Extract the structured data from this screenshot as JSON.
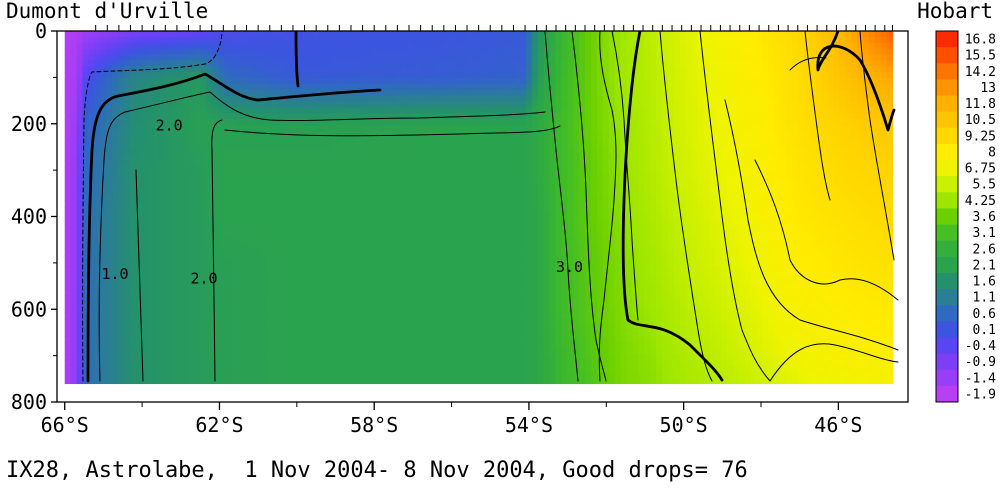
{
  "left_station": "Dumont d'Urville",
  "right_station": "Hobart",
  "caption": "IX28, Astrolabe,  1 Nov 2004- 8 Nov 2004, Good drops= 76",
  "chart_data": {
    "type": "heatmap",
    "variable": "temperature section",
    "x_axis": {
      "ticks": [
        "66°S",
        "62°S",
        "58°S",
        "54°S",
        "50°S",
        "46°S"
      ],
      "range_lat_south": [
        66.2,
        44.2
      ],
      "data_extent_lat_south": [
        66.0,
        44.6
      ]
    },
    "y_axis": {
      "ticks": [
        "0",
        "200",
        "400",
        "600",
        "800"
      ],
      "range_depth_m": [
        0,
        800
      ],
      "reversed": true,
      "data_max_depth_m": 760
    },
    "colorbar": {
      "levels": [
        "16.8",
        "15.5",
        "14.2",
        "13",
        "11.8",
        "10.5",
        "9.25",
        "8",
        "6.75",
        "5.5",
        "4.25",
        "3.6",
        "3.1",
        "2.6",
        "2.1",
        "1.6",
        "1.1",
        "0.6",
        "0.1",
        "-0.4",
        "-0.9",
        "-1.4",
        "-1.9"
      ],
      "colors": [
        "#ff2a00",
        "#ff4f00",
        "#ff7400",
        "#ff9400",
        "#ffb000",
        "#ffc400",
        "#ffd800",
        "#ffec00",
        "#eef400",
        "#c8f000",
        "#9ee600",
        "#6cd000",
        "#45bf22",
        "#33b039",
        "#2aa34e",
        "#24916c",
        "#2a7e95",
        "#2f6ac0",
        "#3b55df",
        "#5a45f2",
        "#7c3ff6",
        "#9a3df6",
        "#b83ff2"
      ]
    },
    "depth_levels_m": [
      0,
      100,
      200,
      300,
      400,
      500,
      600,
      700,
      760
    ],
    "columns": [
      {
        "lat": 66.0,
        "t": [
          -1.8,
          -1.8,
          -1.8,
          -1.8,
          -1.8,
          -1.8,
          -1.8,
          -1.8,
          -1.8
        ]
      },
      {
        "lat": 65.7,
        "t": [
          -1.7,
          -1.6,
          -1.4,
          -1.3,
          -1.3,
          -1.3,
          -1.2,
          -1.2,
          -1.2
        ]
      },
      {
        "lat": 65.45,
        "t": [
          -1.5,
          -0.3,
          0.4,
          0.6,
          0.7,
          0.7,
          0.7,
          0.7,
          0.7
        ]
      },
      {
        "lat": 64.9,
        "t": [
          -1.2,
          0.5,
          0.9,
          1.0,
          1.1,
          1.1,
          1.1,
          1.1,
          1.1
        ]
      },
      {
        "lat": 64.2,
        "t": [
          -0.9,
          1.3,
          1.5,
          1.6,
          1.6,
          1.6,
          1.6,
          1.6,
          1.6
        ]
      },
      {
        "lat": 62.5,
        "t": [
          -0.6,
          1.8,
          2.0,
          1.9,
          1.9,
          1.9,
          1.9,
          1.9,
          1.9
        ]
      },
      {
        "lat": 61.8,
        "t": [
          -0.2,
          0.6,
          2.0,
          2.1,
          2.1,
          2.0,
          2.0,
          2.0,
          2.0
        ]
      },
      {
        "lat": 60.0,
        "t": [
          0.0,
          0.2,
          2.0,
          2.1,
          2.1,
          2.1,
          2.1,
          2.1,
          2.1
        ]
      },
      {
        "lat": 56.0,
        "t": [
          0.1,
          0.3,
          2.1,
          2.1,
          2.1,
          2.1,
          2.1,
          2.1,
          2.1
        ]
      },
      {
        "lat": 54.1,
        "t": [
          0.2,
          0.4,
          2.1,
          2.1,
          2.1,
          2.1,
          2.1,
          2.1,
          2.1
        ]
      },
      {
        "lat": 53.8,
        "t": [
          1.6,
          1.8,
          2.3,
          2.3,
          2.2,
          2.2,
          2.2,
          2.2,
          2.2
        ]
      },
      {
        "lat": 53.2,
        "t": [
          2.7,
          2.8,
          2.9,
          2.9,
          2.9,
          2.9,
          2.9,
          2.8,
          2.8
        ]
      },
      {
        "lat": 52.4,
        "t": [
          3.6,
          3.6,
          3.6,
          3.5,
          3.5,
          3.4,
          3.4,
          3.3,
          3.2
        ]
      },
      {
        "lat": 51.6,
        "t": [
          4.3,
          4.3,
          4.2,
          4.1,
          4.0,
          3.9,
          3.9,
          3.8,
          3.8
        ]
      },
      {
        "lat": 50.8,
        "t": [
          5.2,
          5.1,
          5.0,
          4.9,
          4.7,
          4.5,
          4.3,
          4.1,
          4.0
        ]
      },
      {
        "lat": 50.0,
        "t": [
          6.2,
          6.0,
          5.9,
          5.8,
          5.5,
          5.3,
          5.0,
          4.7,
          4.5
        ]
      },
      {
        "lat": 49.0,
        "t": [
          7.3,
          7.0,
          6.9,
          6.7,
          6.4,
          6.1,
          5.7,
          5.3,
          5.0
        ]
      },
      {
        "lat": 48.0,
        "t": [
          8.3,
          8.0,
          7.8,
          7.6,
          7.3,
          7.0,
          6.6,
          6.1,
          5.7
        ]
      },
      {
        "lat": 47.0,
        "t": [
          9.3,
          9.0,
          8.8,
          8.5,
          8.2,
          7.9,
          7.5,
          7.0,
          6.5
        ]
      },
      {
        "lat": 46.0,
        "t": [
          11.2,
          10.4,
          9.6,
          9.1,
          8.7,
          8.3,
          7.9,
          7.4,
          6.9
        ]
      },
      {
        "lat": 45.2,
        "t": [
          13.5,
          11.6,
          10.1,
          9.4,
          9.0,
          8.6,
          8.1,
          7.6,
          7.1
        ]
      },
      {
        "lat": 44.6,
        "t": [
          15.0,
          12.2,
          10.3,
          9.5,
          9.1,
          8.7,
          8.2,
          7.7,
          7.2
        ]
      }
    ],
    "contour_labels": [
      {
        "text": "2.0",
        "lat": 63.3,
        "depth_m": 215
      },
      {
        "text": "1.0",
        "lat": 64.7,
        "depth_m": 535
      },
      {
        "text": "2.0",
        "lat": 62.4,
        "depth_m": 545
      },
      {
        "text": "3.0",
        "lat": 52.95,
        "depth_m": 520
      }
    ],
    "drop_lats": [
      65.2,
      64.9,
      64.6,
      64.3,
      64.0,
      63.7,
      63.4,
      63.1,
      62.8,
      62.5,
      62.2,
      61.9,
      61.6,
      61.3,
      61.0,
      60.7,
      60.4,
      60.1,
      59.8,
      59.5,
      59.2,
      58.9,
      58.6,
      58.3,
      58.0,
      57.7,
      57.4,
      57.1,
      56.8,
      56.5,
      56.2,
      55.9,
      55.6,
      55.3,
      55.0,
      54.7,
      54.4,
      54.1,
      53.8,
      53.55,
      53.3,
      53.05,
      52.8,
      52.55,
      52.3,
      52.05,
      51.8,
      51.55,
      51.3,
      51.05,
      50.8,
      50.55,
      50.3,
      50.05,
      49.8,
      49.55,
      49.3,
      49.05,
      48.8,
      48.55,
      48.3,
      48.05,
      47.8,
      47.55,
      47.3,
      47.05,
      46.8,
      46.55,
      46.3,
      46.05,
      45.8,
      45.55,
      45.3,
      45.05,
      44.8,
      44.6
    ]
  }
}
